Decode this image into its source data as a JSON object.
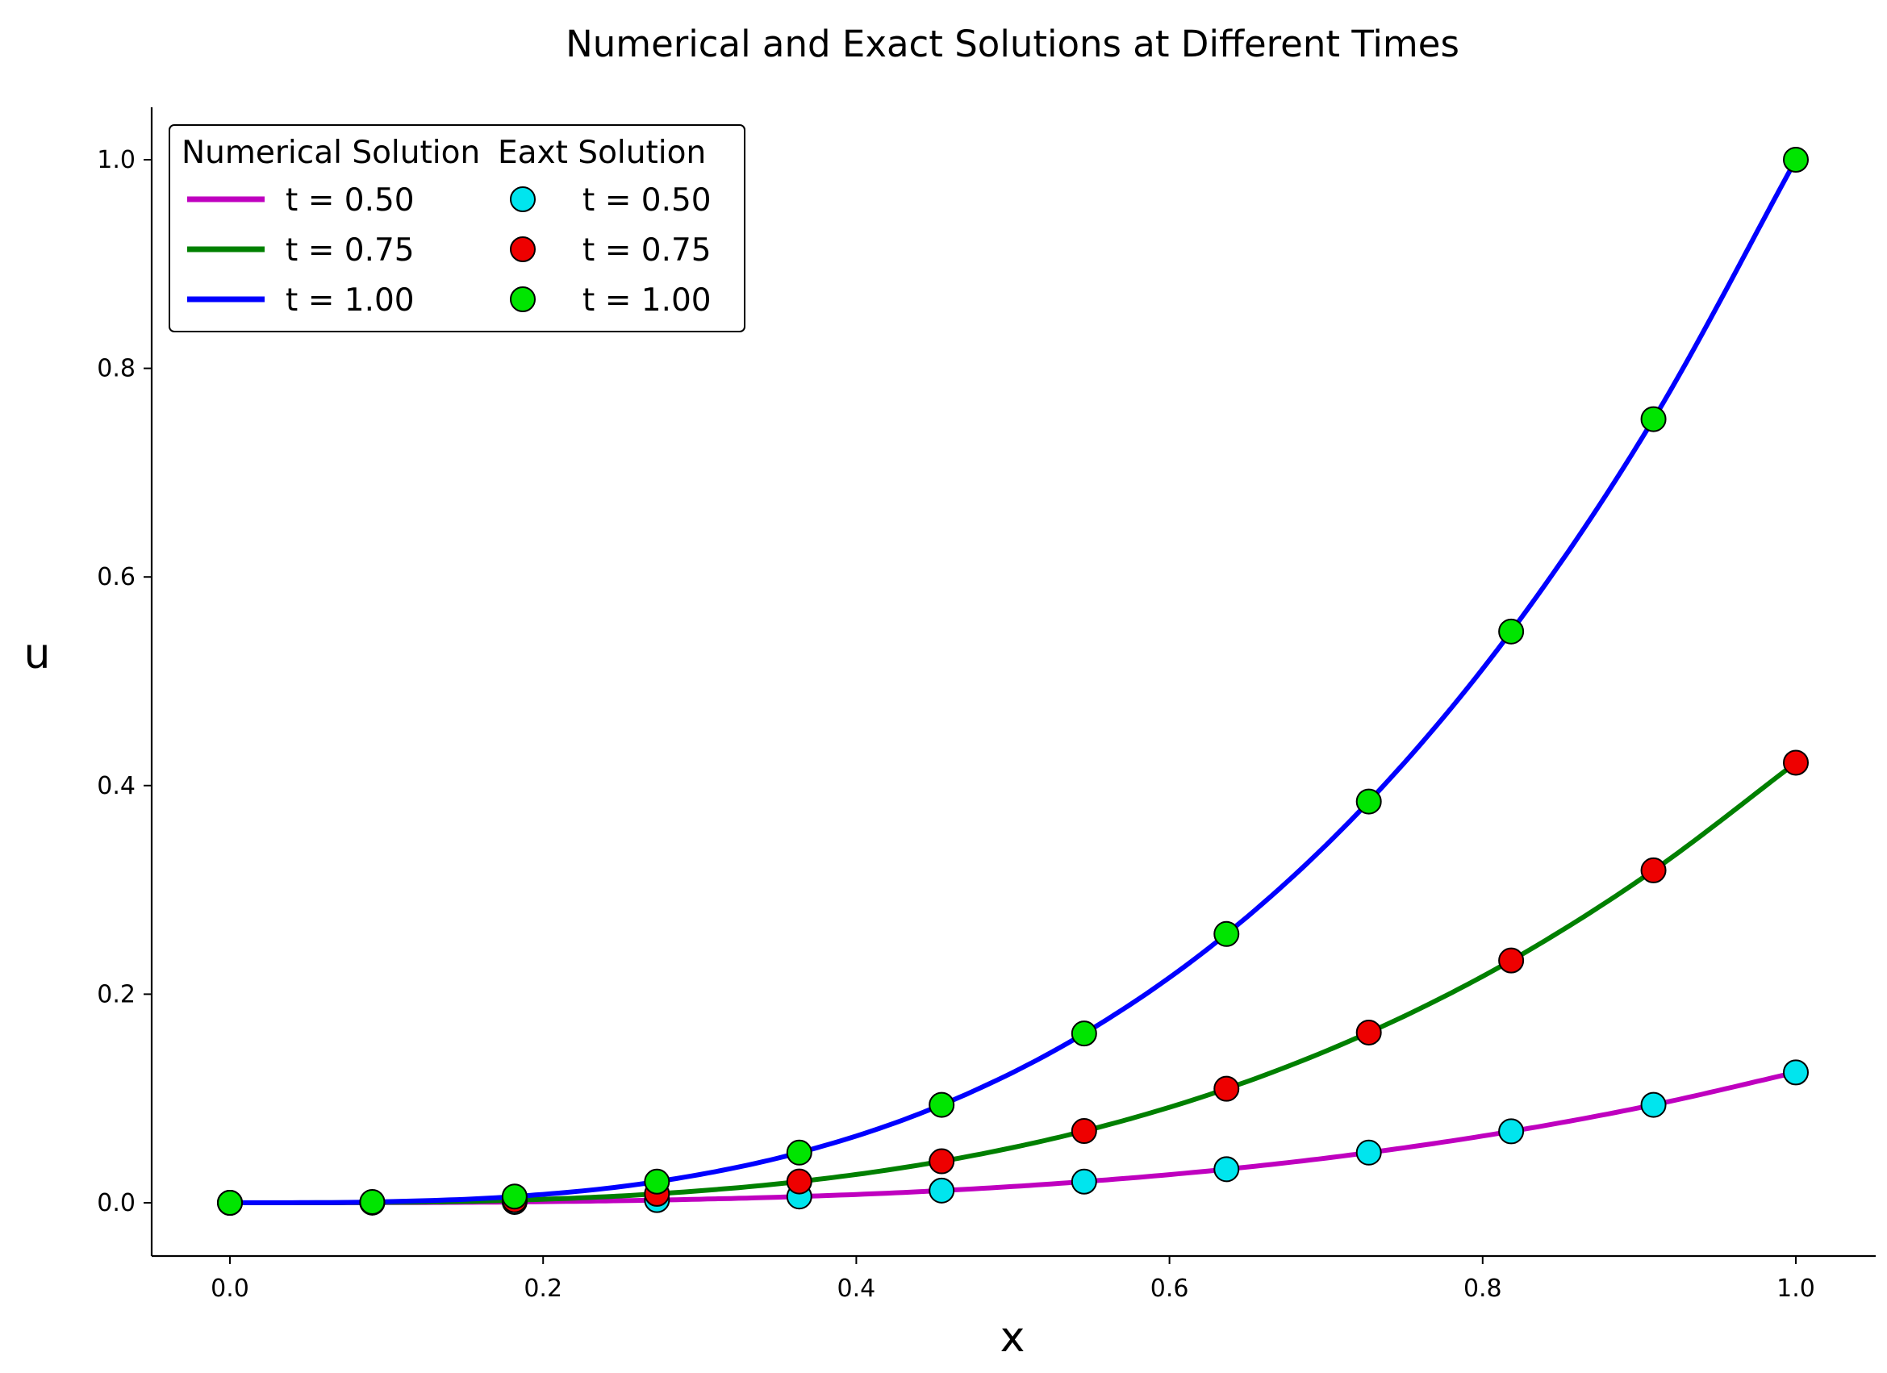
{
  "chart_data": {
    "type": "line",
    "title": "Numerical and Exact Solutions at Different Times",
    "xlabel": "x",
    "ylabel": "u",
    "xlim": [
      -0.05,
      1.05
    ],
    "ylim": [
      -0.05,
      1.05
    ],
    "xticks": [
      "0.0",
      "0.2",
      "0.4",
      "0.6",
      "0.8",
      "1.0"
    ],
    "yticks": [
      "0.0",
      "0.2",
      "0.4",
      "0.6",
      "0.8",
      "1.0"
    ],
    "grid": false,
    "legend": {
      "placement": "upper-left",
      "numerical_title": "Numerical Solution",
      "exact_title": "Eaxt Solution"
    },
    "x": [
      0.0,
      0.0909,
      0.1818,
      0.2727,
      0.3636,
      0.4545,
      0.5455,
      0.6364,
      0.7273,
      0.8182,
      0.9091,
      1.0
    ],
    "numerical_series": [
      {
        "name": "t = 0.50",
        "color": "#bf00bf",
        "values": [
          0.0,
          0.0001,
          0.0008,
          0.0026,
          0.006,
          0.0117,
          0.0203,
          0.0322,
          0.0481,
          0.0685,
          0.0939,
          0.125
        ]
      },
      {
        "name": "t = 0.75",
        "color": "#008000",
        "values": [
          0.0,
          0.0003,
          0.0025,
          0.0086,
          0.0204,
          0.0398,
          0.0688,
          0.1093,
          0.1632,
          0.2323,
          0.3187,
          0.4219
        ]
      },
      {
        "name": "t = 1.00",
        "color": "#0000ff",
        "values": [
          0.0,
          0.0008,
          0.006,
          0.0203,
          0.0481,
          0.0939,
          0.1623,
          0.2577,
          0.3847,
          0.5477,
          0.7513,
          1.0
        ]
      }
    ],
    "exact_series": [
      {
        "name": "t = 0.50",
        "color": "#00e5ee",
        "values": [
          0.0,
          0.0001,
          0.0008,
          0.0026,
          0.006,
          0.0117,
          0.0203,
          0.0322,
          0.0481,
          0.0685,
          0.0939,
          0.125
        ]
      },
      {
        "name": "t = 0.75",
        "color": "#ee0000",
        "values": [
          0.0,
          0.0003,
          0.0025,
          0.0086,
          0.0204,
          0.0398,
          0.0688,
          0.1093,
          0.1632,
          0.2323,
          0.3187,
          0.4219
        ]
      },
      {
        "name": "t = 1.00",
        "color": "#00e500",
        "values": [
          0.0,
          0.0008,
          0.006,
          0.0203,
          0.0481,
          0.0939,
          0.1623,
          0.2577,
          0.3847,
          0.5477,
          0.7513,
          1.0
        ]
      }
    ]
  }
}
